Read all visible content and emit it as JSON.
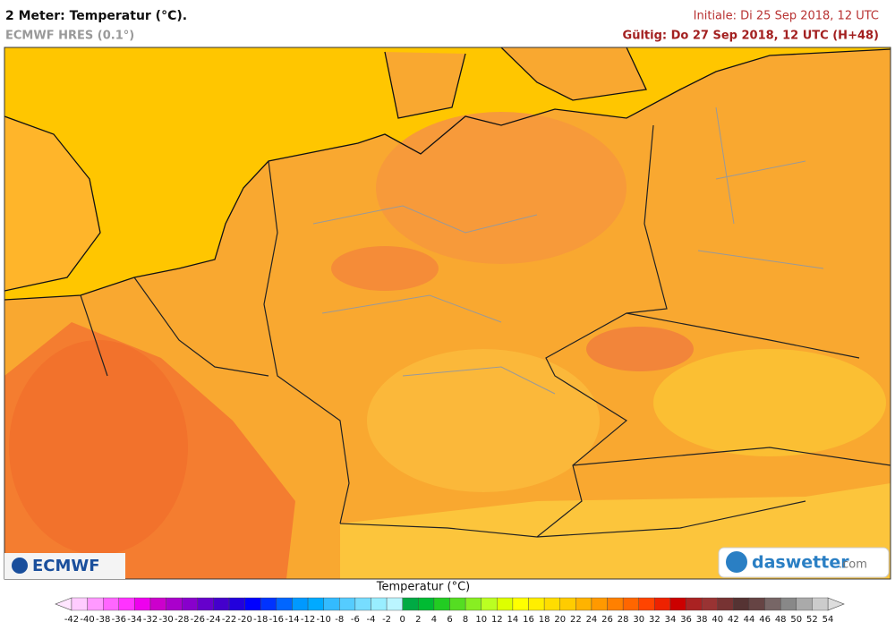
{
  "header": {
    "title": "2 Meter: Temperatur (°C).",
    "model": "ECMWF HRES (0.1°)",
    "initial": "Initiale: Di 25 Sep 2018, 12 UTC",
    "valid": "Gültig: Do 27 Sep 2018, 12 UTC (H+48)"
  },
  "logos": {
    "ecmwf": "ECMWF",
    "daswetter": "daswetter",
    "daswetter_domain": ".com"
  },
  "colorbar": {
    "title": "Temperatur (°C)",
    "labels": [
      -42,
      -40,
      -38,
      -36,
      -34,
      -32,
      -30,
      -28,
      -26,
      -24,
      -22,
      -20,
      -18,
      -16,
      -14,
      -12,
      -10,
      -8,
      -6,
      -4,
      -2,
      0,
      2,
      4,
      6,
      8,
      10,
      12,
      14,
      16,
      18,
      20,
      22,
      24,
      26,
      28,
      30,
      32,
      34,
      36,
      38,
      40,
      42,
      44,
      46,
      48,
      50,
      52,
      54
    ],
    "colors": [
      "#ffccff",
      "#ff99ff",
      "#ff66ff",
      "#ff33ff",
      "#ee00ee",
      "#cc00cc",
      "#aa00cc",
      "#8800cc",
      "#6600cc",
      "#4400cc",
      "#2200dd",
      "#0000ff",
      "#0033ff",
      "#0066ff",
      "#0099ff",
      "#00aaff",
      "#33bbff",
      "#55ccff",
      "#77ddff",
      "#99eeff",
      "#bbf5ff",
      "#00aa44",
      "#00bb33",
      "#22cc22",
      "#55dd22",
      "#88ee22",
      "#bbff22",
      "#ddff00",
      "#ffff00",
      "#ffee00",
      "#ffdd00",
      "#ffcc00",
      "#ffb300",
      "#ff9900",
      "#ff8000",
      "#ff6600",
      "#ff4400",
      "#ee2200",
      "#cc0000",
      "#aa2222",
      "#993333",
      "#773333",
      "#553333",
      "#664444",
      "#776666",
      "#888888",
      "#aaaaaa",
      "#cccccc"
    ]
  }
}
